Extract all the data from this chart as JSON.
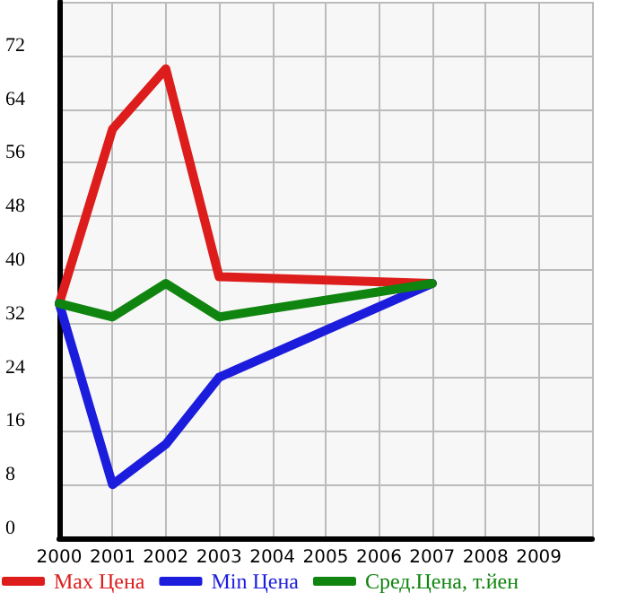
{
  "chart_data": {
    "type": "line",
    "x": [
      2000,
      2001,
      2002,
      2003,
      2007
    ],
    "series": [
      {
        "name": "Max Цена",
        "color": "#dd1c1c",
        "values": [
          35,
          61,
          70,
          39,
          38
        ]
      },
      {
        "name": "Min Цена",
        "color": "#1c1cdd",
        "values": [
          35,
          8,
          14,
          24,
          38
        ]
      },
      {
        "name": "Сред.Цена, т.йен",
        "color": "#0f840f",
        "values": [
          35,
          33,
          38,
          33,
          38
        ]
      }
    ],
    "xlim": [
      2000,
      2010
    ],
    "xticks": [
      2000,
      2001,
      2002,
      2003,
      2004,
      2005,
      2006,
      2007,
      2008,
      2009,
      {
        "value": 2010,
        "label": null
      }
    ],
    "ylim": [
      0,
      80
    ],
    "yticks": [
      0,
      8,
      16,
      24,
      32,
      40,
      48,
      56,
      64,
      72,
      {
        "value": 80,
        "label": null
      }
    ],
    "grid": true,
    "legend": "bottom",
    "marker": "none",
    "line_style": "solid"
  }
}
